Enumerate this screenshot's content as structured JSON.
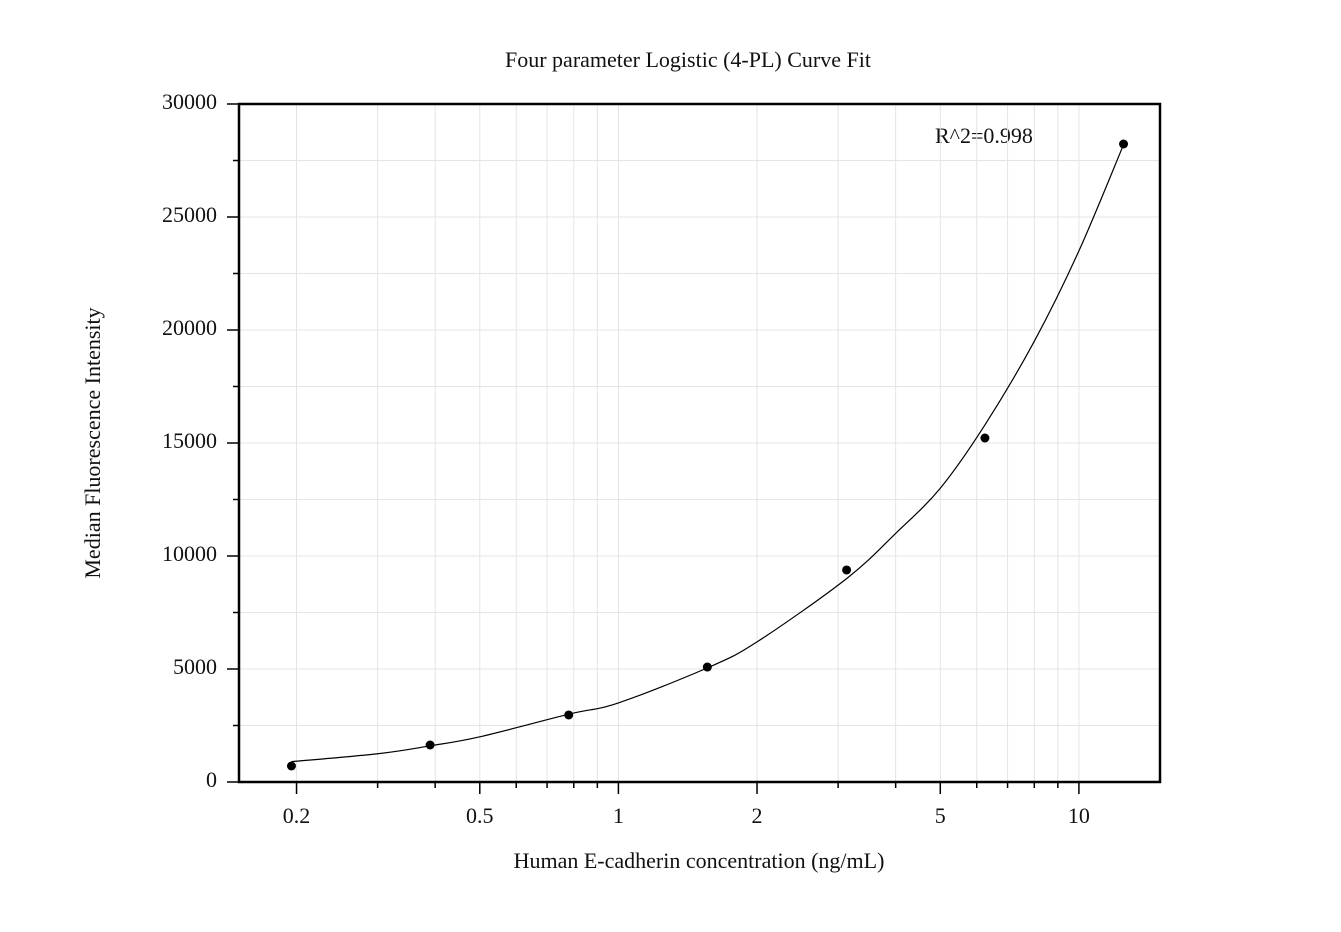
{
  "chart_data": {
    "type": "scatter",
    "title": "Four parameter Logistic (4-PL) Curve Fit",
    "x_label": "Human E-cadherin concentration (ng/mL)",
    "y_label": "Median Fluorescence Intensity",
    "annotation": "R^2=0.998",
    "x": [
      0.195,
      0.39,
      0.78,
      1.56,
      3.13,
      6.25,
      12.5
    ],
    "values": [
      708,
      1637,
      2965,
      5088,
      9381,
      15221,
      28230
    ],
    "color": "#000000",
    "fit": {
      "x": [
        0.195,
        0.3,
        0.39,
        0.5,
        0.78,
        1,
        1.56,
        2,
        3.13,
        4,
        5,
        6.25,
        8,
        10,
        12.5
      ],
      "values": [
        900,
        1250,
        1600,
        2000,
        3000,
        3500,
        5050,
        6200,
        9000,
        11000,
        13000,
        15800,
        19500,
        23500,
        28200
      ],
      "color": "#000000"
    },
    "xscale": "log",
    "xlim": [
      0.15,
      15
    ],
    "ylim": [
      0,
      30000
    ],
    "xticks": [
      0.2,
      0.5,
      1,
      2,
      5,
      10
    ],
    "xminorticks": [
      0.3,
      0.4,
      0.6,
      0.7,
      0.8,
      0.9,
      3,
      4,
      6,
      7,
      8,
      9
    ],
    "yticks": [
      0,
      5000,
      10000,
      15000,
      20000,
      25000,
      30000
    ],
    "yminorticks": [
      2500,
      7500,
      12500,
      17500,
      22500,
      27500
    ],
    "grid": true
  }
}
